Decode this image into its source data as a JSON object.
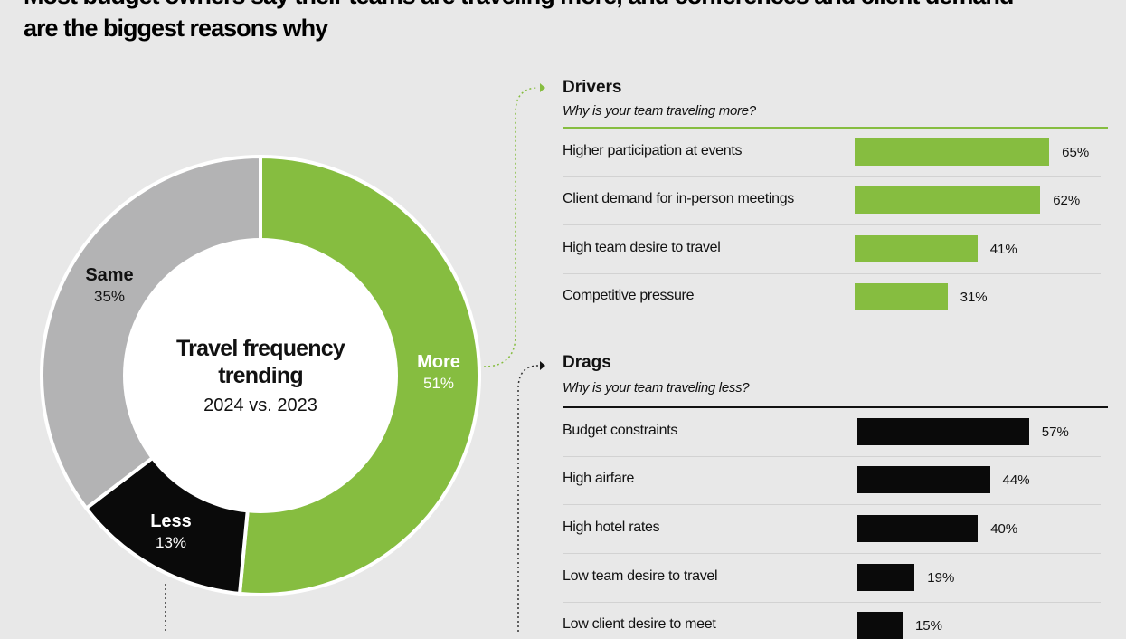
{
  "title": {
    "line1": "Most budget owners say their teams are traveling more, and conferences and client demand",
    "line2": "are the biggest reasons why"
  },
  "colors": {
    "green": "#86bd40",
    "black": "#0a0a0a",
    "gray": "#b3b3b4",
    "background": "#e8e8e8"
  },
  "chart_data": [
    {
      "type": "pie",
      "title": "Travel frequency trending",
      "subtitle": "2024 vs. 2023",
      "slices": [
        {
          "label": "More",
          "value": 51,
          "display": "51%",
          "color": "#86bd40"
        },
        {
          "label": "Less",
          "value": 13,
          "display": "13%",
          "color": "#0a0a0a"
        },
        {
          "label": "Same",
          "value": 35,
          "display": "35%",
          "color": "#b3b3b4"
        }
      ]
    },
    {
      "type": "bar",
      "title": "Drivers",
      "subtitle": "Why is your team traveling more?",
      "categories": [
        "Higher participation at events",
        "Client demand for in-person meetings",
        "High team desire to travel",
        "Competitive pressure"
      ],
      "values": [
        65,
        62,
        41,
        31
      ],
      "labels": [
        "65%",
        "62%",
        "41%",
        "31%"
      ],
      "color": "#86bd40"
    },
    {
      "type": "bar",
      "title": "Drags",
      "subtitle": "Why is your team traveling less?",
      "categories": [
        "Budget constraints",
        "High airfare",
        "High hotel rates",
        "Low team desire to travel",
        "Low client desire to meet"
      ],
      "values": [
        57,
        44,
        40,
        19,
        15
      ],
      "labels": [
        "57%",
        "44%",
        "40%",
        "19%",
        "15%"
      ],
      "color": "#0a0a0a"
    }
  ]
}
